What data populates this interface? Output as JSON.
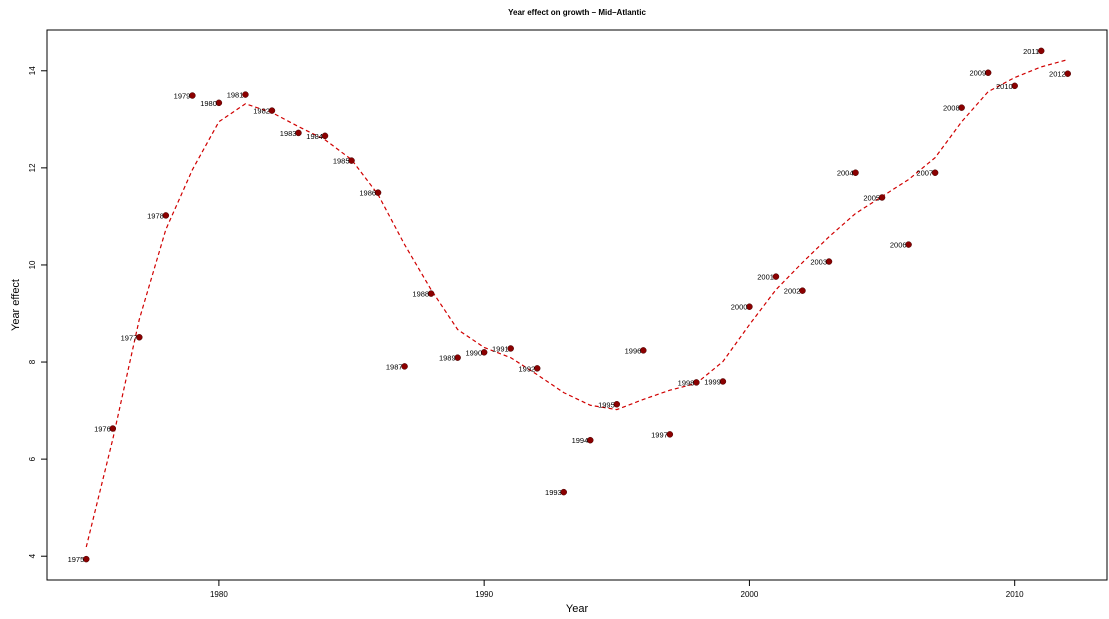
{
  "chart_data": {
    "type": "scatter",
    "title": "Year effect on growth – Mid–Atlantic",
    "x_label": "Year",
    "y_label": "Year effect",
    "x": [
      1975,
      1976,
      1977,
      1978,
      1979,
      1980,
      1981,
      1982,
      1983,
      1984,
      1985,
      1986,
      1987,
      1988,
      1989,
      1990,
      1991,
      1992,
      1993,
      1994,
      1995,
      1996,
      1997,
      1998,
      1999,
      2000,
      2001,
      2002,
      2003,
      2004,
      2005,
      2006,
      2007,
      2008,
      2009,
      2010,
      2011,
      2012
    ],
    "series": [
      {
        "kind": "points",
        "color": "#8b0000",
        "point_labels": true,
        "values": [
          3.94,
          6.63,
          8.51,
          11.02,
          13.49,
          13.34,
          13.51,
          13.18,
          12.72,
          12.66,
          12.15,
          11.49,
          7.91,
          9.41,
          8.09,
          8.2,
          8.28,
          7.87,
          5.32,
          6.39,
          7.13,
          8.24,
          6.51,
          7.58,
          7.6,
          9.14,
          9.76,
          9.47,
          10.07,
          11.9,
          11.39,
          10.42,
          11.9,
          13.24,
          13.96,
          13.69,
          14.41,
          13.94
        ]
      },
      {
        "kind": "line",
        "color": "#d00000",
        "dashed": true,
        "values": [
          4.19,
          6.41,
          8.88,
          10.73,
          11.96,
          12.95,
          13.32,
          13.14,
          12.85,
          12.58,
          12.17,
          11.45,
          10.42,
          9.49,
          8.67,
          8.3,
          8.09,
          7.74,
          7.37,
          7.11,
          7.02,
          7.23,
          7.42,
          7.56,
          8.01,
          8.77,
          9.49,
          10.05,
          10.58,
          11.06,
          11.41,
          11.76,
          12.21,
          12.95,
          13.57,
          13.86,
          14.08,
          14.23
        ]
      }
    ],
    "xlim": [
      1973.52,
      2013.48
    ],
    "xticks": [
      1980,
      1990,
      2000,
      2010
    ],
    "ylim": [
      3.51,
      14.84
    ],
    "yticks": [
      4,
      6,
      8,
      10,
      12,
      14
    ]
  }
}
